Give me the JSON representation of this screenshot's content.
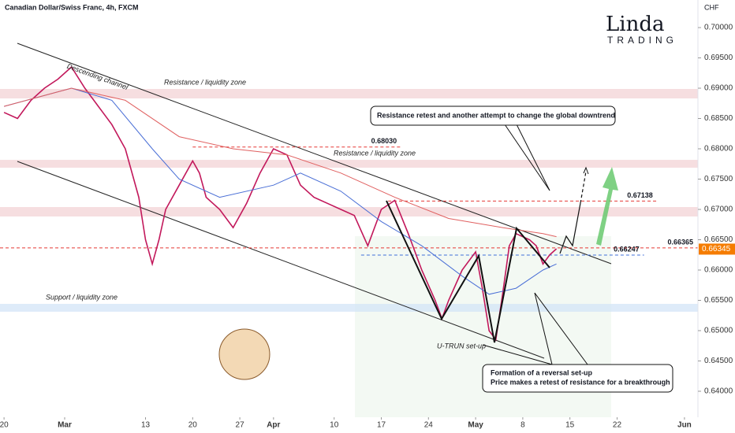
{
  "chart_data": {
    "type": "line",
    "title": "Canadian Dollar/Swiss Franc, 4h, FXCM",
    "y_label": "CHF",
    "xlim": [
      -0.6,
      103
    ],
    "ylim": [
      0.63571,
      0.70455
    ],
    "xticks": [
      {
        "value": 0,
        "label": "20"
      },
      {
        "value": 9,
        "label": "Mar"
      },
      {
        "value": 21,
        "label": "13"
      },
      {
        "value": 28,
        "label": "20"
      },
      {
        "value": 35,
        "label": "27"
      },
      {
        "value": 40,
        "label": "Apr"
      },
      {
        "value": 49,
        "label": "10"
      },
      {
        "value": 56,
        "label": "17"
      },
      {
        "value": 63,
        "label": "24"
      },
      {
        "value": 70,
        "label": "May"
      },
      {
        "value": 77,
        "label": "8"
      },
      {
        "value": 84,
        "label": "15"
      },
      {
        "value": 91,
        "label": "22"
      },
      {
        "value": 101,
        "label": "Jun"
      }
    ],
    "yticks": [
      {
        "value": 0.64,
        "label": "0.64000"
      },
      {
        "value": 0.645,
        "label": "0.64500"
      },
      {
        "value": 0.65,
        "label": "0.65000"
      },
      {
        "value": 0.655,
        "label": "0.65500"
      },
      {
        "value": 0.66,
        "label": "0.66000"
      },
      {
        "value": 0.665,
        "label": "0.66500"
      },
      {
        "value": 0.67,
        "label": "0.67000"
      },
      {
        "value": 0.675,
        "label": "0.67500"
      },
      {
        "value": 0.68,
        "label": "0.68000"
      },
      {
        "value": 0.685,
        "label": "0.68500"
      },
      {
        "value": 0.69,
        "label": "0.69000"
      },
      {
        "value": 0.695,
        "label": "0.69500"
      },
      {
        "value": 0.7,
        "label": "0.70000"
      }
    ],
    "series": [
      {
        "color": "#c2185b",
        "width": 1.6,
        "x": [
          0,
          2,
          4,
          6,
          8,
          10,
          12,
          14,
          16,
          18,
          20,
          21,
          22,
          23,
          24,
          26,
          28,
          29,
          30,
          32,
          34,
          36,
          38,
          40,
          42,
          44,
          46,
          48,
          50,
          52,
          54,
          56,
          58,
          60,
          62,
          64,
          65,
          66,
          68,
          70,
          71,
          72,
          73,
          74,
          75,
          76,
          78,
          79,
          80,
          81,
          82
        ],
        "values": [
          0.686,
          0.685,
          0.688,
          0.69,
          0.6915,
          0.6935,
          0.69,
          0.687,
          0.684,
          0.68,
          0.672,
          0.665,
          0.661,
          0.665,
          0.67,
          0.674,
          0.678,
          0.676,
          0.672,
          0.67,
          0.667,
          0.671,
          0.676,
          0.68,
          0.679,
          0.674,
          0.672,
          0.671,
          0.67,
          0.669,
          0.664,
          0.67,
          0.6715,
          0.666,
          0.66,
          0.655,
          0.652,
          0.655,
          0.66,
          0.663,
          0.657,
          0.65,
          0.6485,
          0.656,
          0.664,
          0.666,
          0.665,
          0.664,
          0.661,
          0.6625,
          0.6635
        ]
      },
      {
        "color": "#4a6fd6",
        "width": 1,
        "x": [
          0,
          10,
          16,
          22,
          26,
          32,
          40,
          44,
          50,
          56,
          62,
          68,
          72,
          76,
          80,
          82
        ],
        "values": [
          0.687,
          0.69,
          0.688,
          0.68,
          0.675,
          0.672,
          0.674,
          0.676,
          0.673,
          0.668,
          0.664,
          0.659,
          0.656,
          0.657,
          0.66,
          0.661
        ]
      },
      {
        "color": "#e06060",
        "width": 1,
        "x": [
          0,
          10,
          18,
          26,
          34,
          42,
          50,
          58,
          66,
          74,
          80,
          82
        ],
        "values": [
          0.687,
          0.69,
          0.688,
          0.682,
          0.68,
          0.679,
          0.676,
          0.672,
          0.6685,
          0.667,
          0.666,
          0.6655
        ]
      }
    ],
    "levels": [
      {
        "value": 0.6803,
        "label": "0.68030",
        "from": 28,
        "to": 59,
        "color": "#e53935"
      },
      {
        "value": 0.67138,
        "label": "0.67138",
        "from": 57,
        "to": 97,
        "color": "#e53935"
      },
      {
        "value": 0.66365,
        "label": "0.66365",
        "from": -0.6,
        "to": 103,
        "color": "#e53935"
      },
      {
        "value": 0.66247,
        "label": "0.66247",
        "from": 53,
        "to": 95,
        "color": "#3f6fd8"
      }
    ],
    "zones": [
      {
        "from": 0.68831,
        "to": 0.68987,
        "color": "#f3d3d6",
        "label": "Resistance / liquidity zone"
      },
      {
        "from": 0.67688,
        "to": 0.67818,
        "color": "#f3d3d6",
        "label": "Resistance / liquidity zone"
      },
      {
        "from": 0.66883,
        "to": 0.67039,
        "color": "#f3d3d6"
      },
      {
        "from": 0.65312,
        "to": 0.65442,
        "color": "#d3e4f7",
        "label": "Support / liquidity zone"
      }
    ],
    "last_price": {
      "value": 0.66345,
      "label": "0.66345",
      "color": "#f57c00"
    }
  },
  "annotations": {
    "retest": "Resistance retest and another attempt to change the global downtrend",
    "reversal_1": "Formation of a reversal set-up",
    "reversal_2": "Price makes a retest of resistance for a breakthrough",
    "channel": "Descending channel",
    "pattern": "U-TRUN set-up"
  },
  "logo": {
    "name": "Linda",
    "tag": "TRADING"
  }
}
